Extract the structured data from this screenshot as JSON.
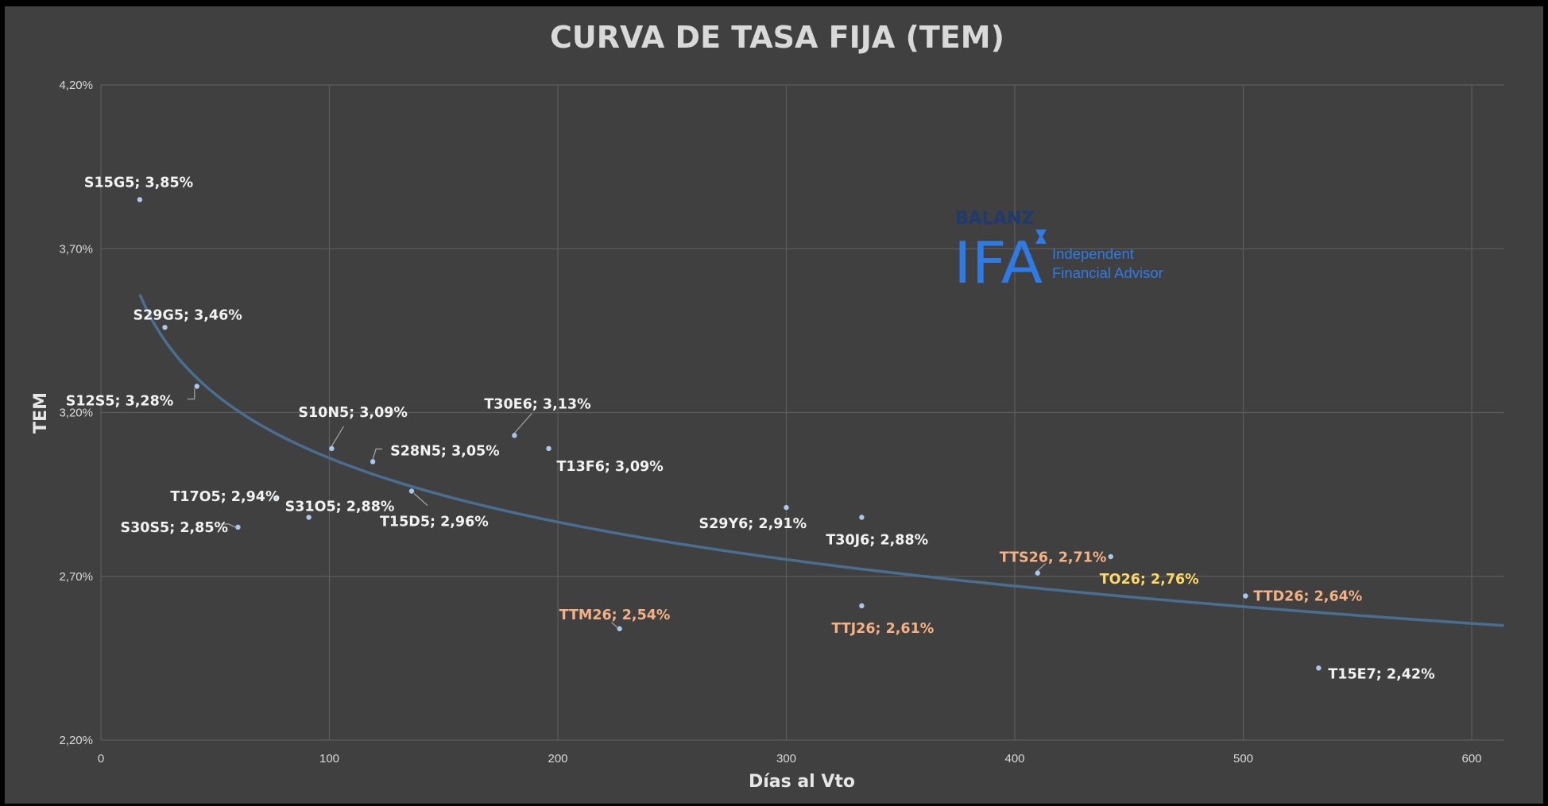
{
  "chart_data": {
    "type": "scatter",
    "title": "CURVA DE TASA FIJA (TEM)",
    "xlabel": "Días al Vto",
    "ylabel": "TEM",
    "xlim": [
      0,
      615
    ],
    "ylim": [
      2.2,
      4.2
    ],
    "xticks": [
      "0",
      "100",
      "200",
      "300",
      "400",
      "500",
      "600"
    ],
    "yticks": [
      "2,20%",
      "2,70%",
      "3,20%",
      "3,70%",
      "4,20%"
    ],
    "grid": true,
    "trendline": "logarithmic",
    "label_colors": {
      "white": "#f2f2f2",
      "peach": "#f4b183",
      "gold": "#ffd966",
      "marker": "#a9c8ea",
      "trend": "#4a6e90"
    },
    "points": [
      {
        "name": "S15G5",
        "label": "S15G5; 3,85%",
        "x": 17,
        "y": 3.85,
        "color": "white"
      },
      {
        "name": "S29G5",
        "label": "S29G5; 3,46%",
        "x": 28,
        "y": 3.46,
        "color": "white"
      },
      {
        "name": "S12S5",
        "label": "S12S5; 3,28%",
        "x": 42,
        "y": 3.28,
        "color": "white"
      },
      {
        "name": "S30S5",
        "label": "S30S5; 2,85%",
        "x": 60,
        "y": 2.85,
        "color": "white"
      },
      {
        "name": "T17O5",
        "label": "T17O5; 2,94%",
        "x": 77,
        "y": 2.94,
        "color": "white"
      },
      {
        "name": "S31O5",
        "label": "S31O5; 2,88%",
        "x": 91,
        "y": 2.88,
        "color": "white"
      },
      {
        "name": "S10N5",
        "label": "S10N5; 3,09%",
        "x": 101,
        "y": 3.09,
        "color": "white"
      },
      {
        "name": "S28N5",
        "label": "S28N5; 3,05%",
        "x": 119,
        "y": 3.05,
        "color": "white"
      },
      {
        "name": "T15D5",
        "label": "T15D5; 2,96%",
        "x": 136,
        "y": 2.96,
        "color": "white"
      },
      {
        "name": "T30E6",
        "label": "T30E6; 3,13%",
        "x": 181,
        "y": 3.13,
        "color": "white"
      },
      {
        "name": "T13F6",
        "label": "T13F6; 3,09%",
        "x": 196,
        "y": 3.09,
        "color": "white"
      },
      {
        "name": "TTM26",
        "label": "TTM26; 2,54%",
        "x": 227,
        "y": 2.54,
        "color": "peach"
      },
      {
        "name": "S29Y6",
        "label": "S29Y6; 2,91%",
        "x": 300,
        "y": 2.91,
        "color": "white"
      },
      {
        "name": "T30J6",
        "label": "T30J6; 2,88%",
        "x": 333,
        "y": 2.88,
        "color": "white"
      },
      {
        "name": "TTJ26",
        "label": "TTJ26; 2,61%",
        "x": 333,
        "y": 2.61,
        "color": "peach"
      },
      {
        "name": "TTS26",
        "label": "TTS26, 2,71%",
        "x": 410,
        "y": 2.71,
        "color": "peach"
      },
      {
        "name": "TO26",
        "label": "TO26; 2,76%",
        "x": 442,
        "y": 2.76,
        "color": "gold"
      },
      {
        "name": "TTD26",
        "label": "TTD26; 2,64%",
        "x": 501,
        "y": 2.64,
        "color": "peach"
      },
      {
        "name": "T15E7",
        "label": "T15E7; 2,42%",
        "x": 533,
        "y": 2.42,
        "color": "white"
      }
    ]
  },
  "logo": {
    "brand": "BALANZ",
    "main": "IFA",
    "line1": "Independent",
    "line2": "Financial Advisor"
  }
}
